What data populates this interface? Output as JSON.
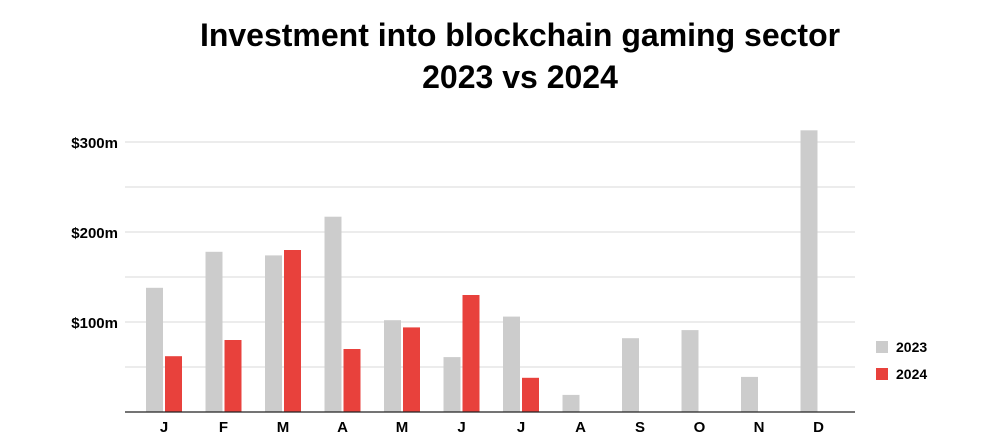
{
  "chart_data": {
    "type": "bar",
    "title_line1": "Investment into blockchain gaming sector",
    "title_line2": "2023 vs 2024",
    "xlabel": "",
    "ylabel": "",
    "categories": [
      "J",
      "F",
      "M",
      "A",
      "M",
      "J",
      "J",
      "A",
      "S",
      "O",
      "N",
      "D"
    ],
    "series": [
      {
        "name": "2023",
        "color": "#cccccc",
        "values": [
          138,
          178,
          174,
          217,
          102,
          61,
          106,
          19,
          82,
          91,
          39,
          313
        ]
      },
      {
        "name": "2024",
        "color": "#e8413c",
        "values": [
          62,
          80,
          180,
          70,
          94,
          130,
          38,
          null,
          null,
          null,
          null,
          null
        ]
      }
    ],
    "yticks": [
      {
        "value": 100,
        "label": "$100m"
      },
      {
        "value": 200,
        "label": "$200m"
      },
      {
        "value": 300,
        "label": "$300m"
      }
    ],
    "gridlines": [
      50,
      100,
      150,
      200,
      250,
      300
    ],
    "ylim": [
      0,
      315
    ],
    "grid": true,
    "legend_position": "right"
  }
}
